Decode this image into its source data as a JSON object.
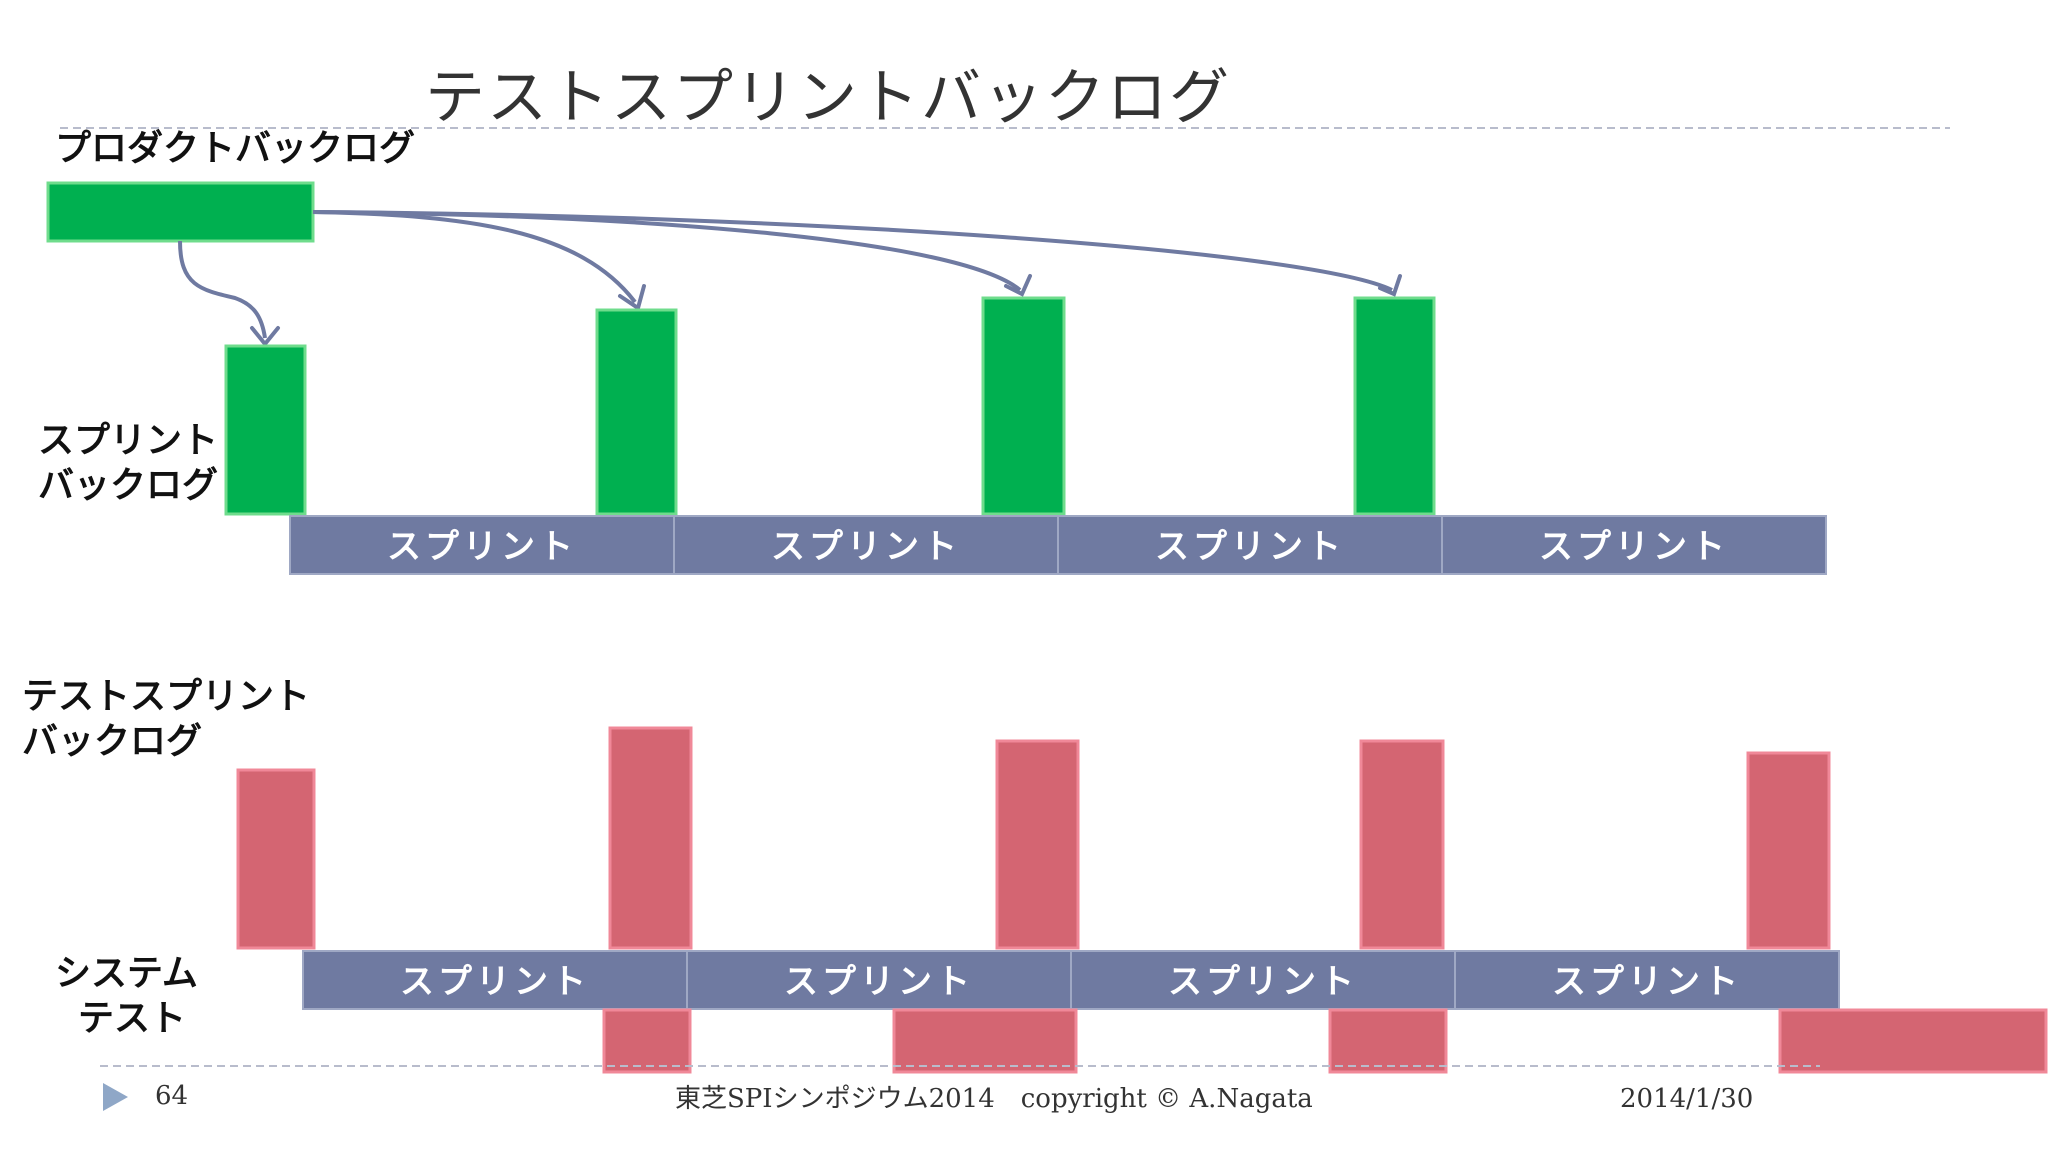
{
  "slide": {
    "title": "テストスプリントバックログ",
    "labels": {
      "product_backlog": "プロダクトバックログ",
      "sprint_backlog_line1": "スプリント",
      "sprint_backlog_line2": "バックログ",
      "test_sprint_backlog_line1": "テストスプリント",
      "test_sprint_backlog_line2": "バックログ",
      "system_test_line1": "システム",
      "system_test_line2": "テスト"
    },
    "top_sprints": [
      "スプリント",
      "スプリント",
      "スプリント",
      "スプリント"
    ],
    "bottom_sprints": [
      "スプリント",
      "スプリント",
      "スプリント",
      "スプリント"
    ],
    "colors": {
      "green": "#00b050",
      "red": "#d46572",
      "sprint": "#6f7aa1"
    }
  },
  "footer": {
    "page_number": "64",
    "center_text": "東芝SPIシンポジウム2014　copyright © A.Nagata",
    "date": "2014/1/30"
  }
}
